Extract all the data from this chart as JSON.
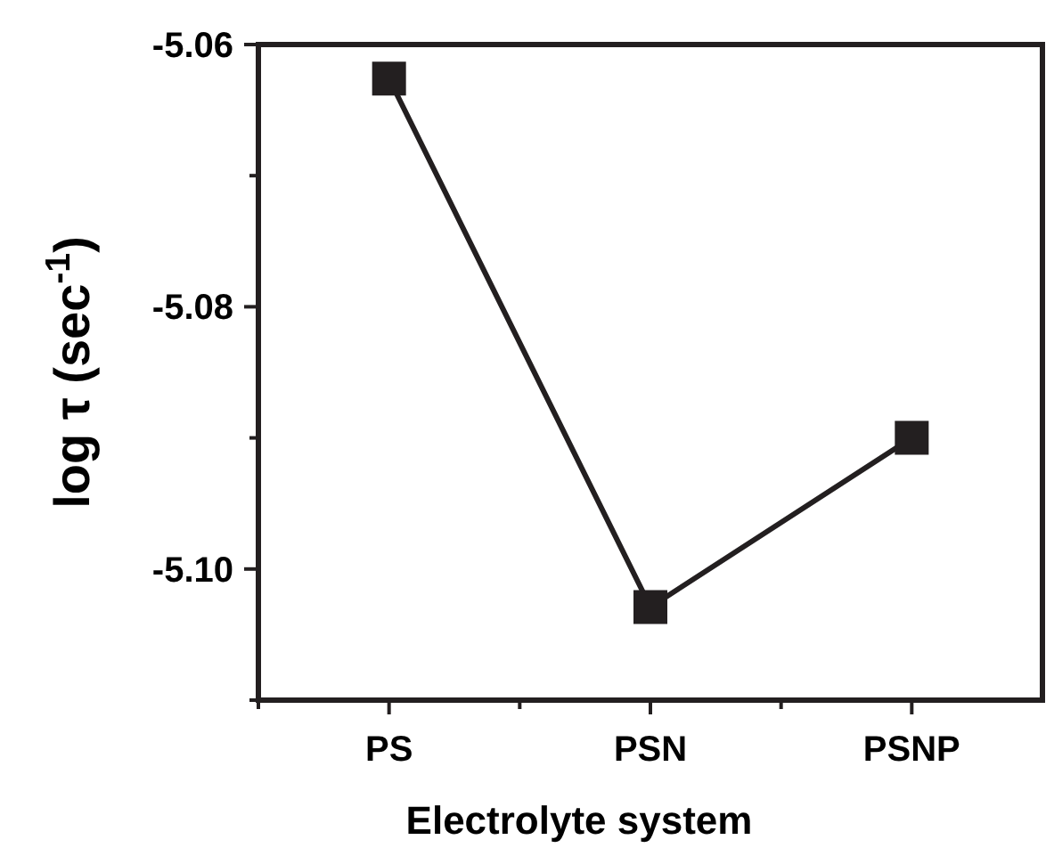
{
  "chart_data": {
    "type": "line",
    "xlabel": "Electrolyte system",
    "ylabel": "log τ (sec$^{-1}$)",
    "categories": [
      "PS",
      "PSN",
      "PSNP"
    ],
    "series": [
      {
        "color": "#231f20",
        "values": [
          -5.0626,
          -5.1029,
          -5.09
        ]
      }
    ],
    "ylim": [
      -5.11,
      -5.06
    ],
    "yticks": [
      {
        "value": -5.06,
        "label": "-5.06"
      },
      {
        "value": -5.07,
        "label": null
      },
      {
        "value": -5.08,
        "label": "-5.08"
      },
      {
        "value": -5.09,
        "label": null
      },
      {
        "value": -5.1,
        "label": "-5.10"
      },
      {
        "value": -5.11,
        "label": null
      }
    ],
    "marker": "square",
    "line_style": "solid",
    "grid": false
  }
}
